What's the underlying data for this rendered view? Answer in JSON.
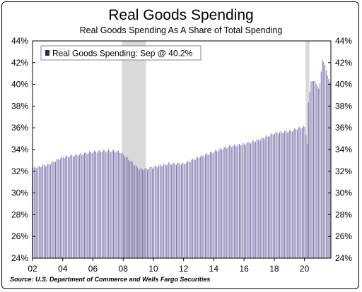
{
  "chart_data": {
    "type": "bar",
    "title": "Real Goods Spending",
    "subtitle": "Real Goods Spending As A Share of Total Spending",
    "source": "Source: U.S. Department of Commerce and Wells Fargo Securities",
    "legend": "Real Goods Spending: Sep @ 40.2%",
    "legend_position": "top-left",
    "color": "#7c74aa",
    "recession_color": "#d9d9d9",
    "x_start": 2002.0,
    "x_end": 2021.75,
    "x_ticks": [
      "02",
      "04",
      "06",
      "08",
      "10",
      "12",
      "14",
      "16",
      "18",
      "20"
    ],
    "x_tick_values": [
      2002,
      2004,
      2006,
      2008,
      2010,
      2012,
      2014,
      2016,
      2018,
      2020
    ],
    "y_ticks": [
      "24%",
      "26%",
      "28%",
      "30%",
      "32%",
      "34%",
      "36%",
      "38%",
      "40%",
      "42%",
      "44%"
    ],
    "ylim": [
      24,
      44
    ],
    "recessions": [
      [
        2007.92,
        2009.5
      ],
      [
        2020.08,
        2020.33
      ]
    ],
    "series": [
      {
        "name": "Real Goods Spending",
        "frequency": "monthly",
        "start": "2002-01",
        "anchors": [
          [
            2002.0,
            32.3
          ],
          [
            2003.0,
            32.6
          ],
          [
            2004.0,
            33.3
          ],
          [
            2005.0,
            33.5
          ],
          [
            2006.0,
            33.8
          ],
          [
            2007.0,
            33.9
          ],
          [
            2007.75,
            33.8
          ],
          [
            2008.5,
            32.9
          ],
          [
            2009.0,
            32.2
          ],
          [
            2009.5,
            32.2
          ],
          [
            2010.0,
            32.4
          ],
          [
            2011.0,
            32.7
          ],
          [
            2012.0,
            32.7
          ],
          [
            2013.0,
            33.3
          ],
          [
            2014.0,
            33.8
          ],
          [
            2015.0,
            34.3
          ],
          [
            2016.0,
            34.5
          ],
          [
            2017.0,
            34.9
          ],
          [
            2018.0,
            35.5
          ],
          [
            2019.0,
            35.7
          ],
          [
            2019.9,
            36.1
          ],
          [
            2020.0,
            36.1
          ],
          [
            2020.17,
            34.5
          ],
          [
            2020.25,
            38.3
          ],
          [
            2020.42,
            40.3
          ],
          [
            2020.67,
            40.3
          ],
          [
            2020.92,
            39.6
          ],
          [
            2021.0,
            40.1
          ],
          [
            2021.17,
            42.3
          ],
          [
            2021.33,
            41.8
          ],
          [
            2021.5,
            40.8
          ],
          [
            2021.67,
            40.2
          ]
        ],
        "latest": "40.2%"
      }
    ]
  }
}
